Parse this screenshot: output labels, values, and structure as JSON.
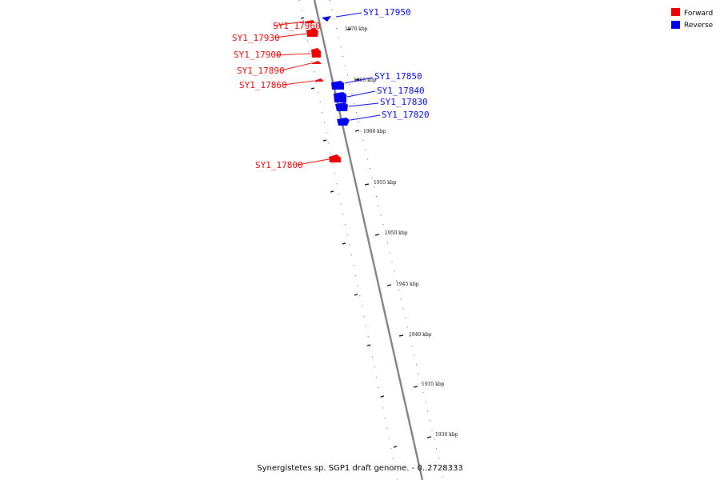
{
  "legend": {
    "items": [
      {
        "label": "Forward",
        "color": "#ee0000"
      },
      {
        "label": "Reverse",
        "color": "#0000ee"
      }
    ]
  },
  "caption": "Synergistetes sp. SGP1 draft genome. - 0..2728333",
  "scale_labels": [
    "1970 kbp",
    "1965 kbp",
    "1960 kbp",
    "1955 kbp",
    "1950 kbp",
    "1945 kbp",
    "1940 kbp",
    "1935 kbp",
    "1930 kbp"
  ],
  "genes": [
    {
      "name": "SY1_17960",
      "strand": "forward"
    },
    {
      "name": "SY1_17950",
      "strand": "reverse"
    },
    {
      "name": "SY1_17930",
      "strand": "forward"
    },
    {
      "name": "SY1_17900",
      "strand": "forward"
    },
    {
      "name": "SY1_17890",
      "strand": "forward"
    },
    {
      "name": "SY1_17860",
      "strand": "forward"
    },
    {
      "name": "SY1_17850",
      "strand": "reverse"
    },
    {
      "name": "SY1_17840",
      "strand": "reverse"
    },
    {
      "name": "SY1_17830",
      "strand": "reverse"
    },
    {
      "name": "SY1_17820",
      "strand": "reverse"
    },
    {
      "name": "SY1_17800",
      "strand": "forward"
    }
  ],
  "colors": {
    "forward": "#ee0000",
    "reverse": "#0000ee",
    "backbone": "#808080"
  }
}
